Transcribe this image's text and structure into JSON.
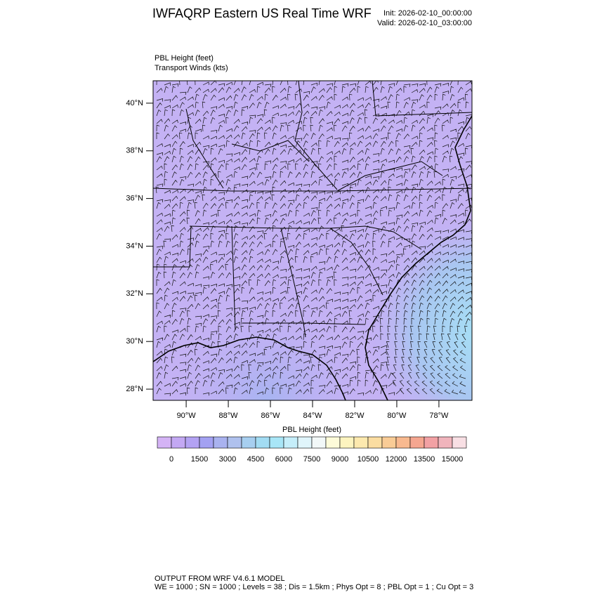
{
  "header": {
    "title": "IWFAQRP Eastern US Real Time WRF",
    "init": "Init: 2026-02-10_00:00:00",
    "valid": "Valid: 2026-02-10_03:00:00"
  },
  "field_labels": [
    "PBL Height   (feet)",
    "Transport Winds   (kts)"
  ],
  "map": {
    "latlim": [
      27.53,
      40.94
    ],
    "lonlim": [
      -91.57,
      -76.43
    ],
    "lat_ticks": [
      {
        "value": 28,
        "label": "28°N"
      },
      {
        "value": 30,
        "label": "30°N"
      },
      {
        "value": 32,
        "label": "32°N"
      },
      {
        "value": 34,
        "label": "34°N"
      },
      {
        "value": 36,
        "label": "36°N"
      },
      {
        "value": 38,
        "label": "38°N"
      },
      {
        "value": 40,
        "label": "40°N"
      }
    ],
    "lon_ticks": [
      {
        "value": -90,
        "label": "90°W"
      },
      {
        "value": -88,
        "label": "88°W"
      },
      {
        "value": -86,
        "label": "86°W"
      },
      {
        "value": -84,
        "label": "84°W"
      },
      {
        "value": -82,
        "label": "82°W"
      },
      {
        "value": -80,
        "label": "80°W"
      },
      {
        "value": -78,
        "label": "78°W"
      }
    ]
  },
  "colorbar": {
    "title": "PBL Height  (feet)",
    "levels": [
      0,
      1500,
      3000,
      4500,
      6000,
      7500,
      9000,
      10500,
      12000,
      13500,
      15000
    ],
    "colors": [
      "#d4b3f5",
      "#c3a8f3",
      "#b3a2f3",
      "#a3a1f2",
      "#a9b2ef",
      "#afc1ee",
      "#a7cff0",
      "#a2dcf3",
      "#a8e6f7",
      "#c5eefa",
      "#e0f5fb",
      "#f2f8f8",
      "#fdfbd9",
      "#fdf4bf",
      "#fde9ae",
      "#fbdda1",
      "#f9cc96",
      "#f8b98f",
      "#f5a690",
      "#f2a1a4",
      "#f0b4bc",
      "#f8dfe4"
    ]
  },
  "footer": [
    "OUTPUT FROM WRF V4.6.1 MODEL",
    "WE = 1000 ; SN = 1000 ; Levels = 38 ; Dis = 1.5km ; Phys Opt = 8 ; PBL Opt = 1 ; Cu Opt = 3"
  ]
}
